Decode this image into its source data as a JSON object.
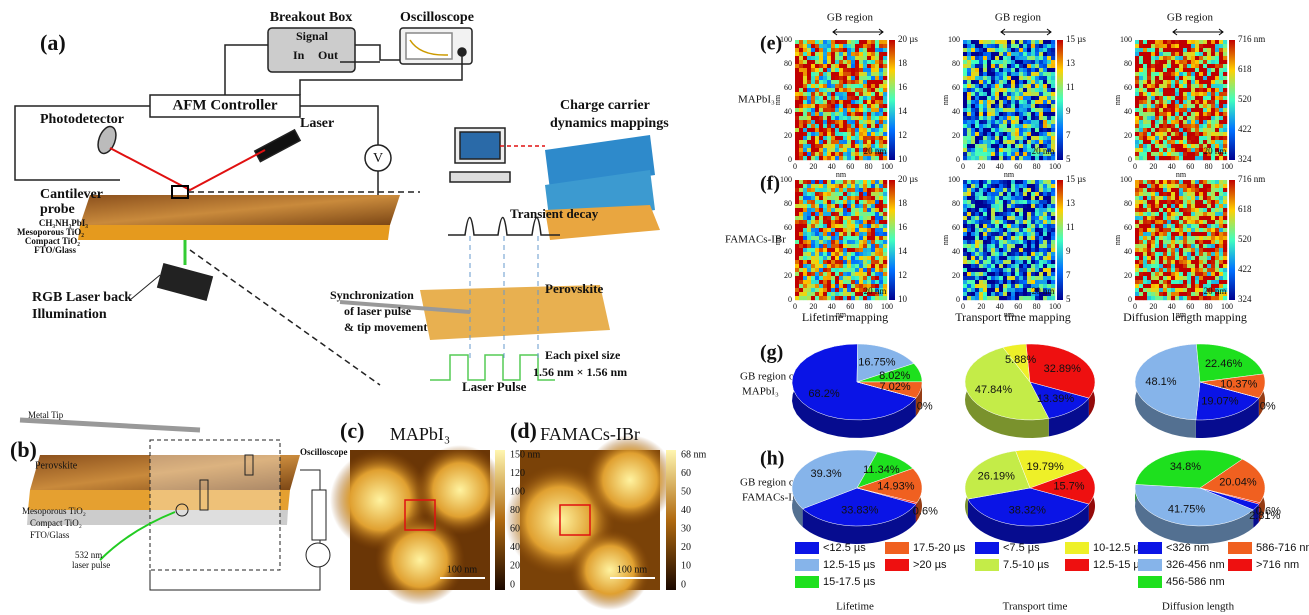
{
  "panel_a": {
    "label": "(a)",
    "breakout_box": "Breakout Box",
    "signal": "Signal",
    "in": "In",
    "out": "Out",
    "oscilloscope": "Oscilloscope",
    "afm_controller": "AFM Controller",
    "photodetector": "Photodetector",
    "laser": "Laser",
    "voltmeter": "V",
    "cantilever": [
      "Cantilever",
      "probe"
    ],
    "layers": [
      "CH₃NH₃PbI₃",
      "Mesoporous TiO₂",
      "Compact TiO₂",
      "FTO/Glass"
    ],
    "rgb": [
      "RGB Laser back",
      "Illumination"
    ],
    "mappings": [
      "Charge carrier",
      "dynamics mappings"
    ],
    "transient": "Transient decay",
    "sync": [
      "Synchronization",
      "of laser pulse",
      "& tip movement"
    ],
    "perovskite": "Perovskite",
    "pixel": [
      "Each pixel size",
      "1.56 nm × 1.56 nm"
    ],
    "laser_pulse": "Laser Pulse"
  },
  "panel_b": {
    "label": "(b)",
    "metal_tip": "Metal Tip",
    "perovskite": "Perovskite",
    "layers": [
      "Mesoporous TiO₂",
      "Compact TiO₂",
      "FTO/Glass"
    ],
    "oscilloscope": "Oscilloscope",
    "laser": [
      "532 nm",
      "laser pulse"
    ]
  },
  "panel_c": {
    "label": "(c)",
    "title": "MAPbI₃",
    "colorbar": [
      "150 nm",
      "120",
      "100",
      "80",
      "60",
      "40",
      "20",
      "0"
    ],
    "scale": "100 nm"
  },
  "panel_d": {
    "label": "(d)",
    "title": "FAMACs-IBr",
    "colorbar": [
      "68 nm",
      "60",
      "50",
      "40",
      "30",
      "20",
      "10",
      "0"
    ],
    "scale": "100 nm"
  },
  "panels_ef": {
    "labels": [
      "(e)",
      "(f)"
    ],
    "rows": [
      "MAPbI₃",
      "FAMACs-IBr"
    ],
    "gb": "GB region",
    "axis_ticks": [
      "0",
      "20",
      "40",
      "60",
      "80",
      "100"
    ],
    "axis_label": "nm",
    "scale": "20 nm",
    "columns": [
      {
        "caption": "Lifetime mapping",
        "colorbar": [
          "20 µs",
          "18",
          "16",
          "14",
          "12",
          "10"
        ]
      },
      {
        "caption": "Transport time mapping",
        "colorbar": [
          "15 µs",
          "13",
          "11",
          "9",
          "7",
          "5"
        ]
      },
      {
        "caption": "Diffusion length mapping",
        "colorbar": [
          "716 nm",
          "618",
          "520",
          "422",
          "324"
        ]
      }
    ]
  },
  "panels_gh": {
    "labels": [
      "(g)",
      "(h)"
    ],
    "rows": [
      [
        "GB region of",
        "MAPbI₃"
      ],
      [
        "GB region of",
        "FAMACs-IBr"
      ]
    ],
    "columns": [
      {
        "title": "Lifetime",
        "categories": [
          "<12.5 µs",
          "12.5-15 µs",
          "15-17.5 µs",
          "17.5-20 µs",
          ">20 µs"
        ],
        "colors": [
          "#0a14e6",
          "#86b4ea",
          "#1ee01e",
          "#f06020",
          "#ee1010"
        ],
        "pies": [
          {
            "type": "pie",
            "values": [
              68.2,
              16.75,
              8.02,
              7.02,
              0
            ],
            "value_labels": [
              "68.2%",
              "16.75%",
              "8.02%",
              "7.02%",
              "0%"
            ]
          },
          {
            "type": "pie",
            "values": [
              33.83,
              39.3,
              11.34,
              14.93,
              0.6
            ],
            "value_labels": [
              "33.83%",
              "39.3%",
              "11.34%",
              "14.93%",
              "0.6%"
            ]
          }
        ]
      },
      {
        "title": "Transport time",
        "categories": [
          "<7.5 µs",
          "7.5-10 µs",
          "10-12.5 µs",
          "12.5-15 µs"
        ],
        "colors": [
          "#0a14e6",
          "#c4ec48",
          "#eef028",
          "#ee1010"
        ],
        "pies": [
          {
            "type": "pie",
            "values": [
              13.39,
              47.84,
              5.88,
              32.89
            ],
            "value_labels": [
              "13.39%",
              "47.84%",
              "5.88%",
              "32.89%"
            ]
          },
          {
            "type": "pie",
            "values": [
              38.32,
              26.19,
              19.79,
              15.7
            ],
            "value_labels": [
              "38.32%",
              "26.19%",
              "19.79%",
              "15.7%"
            ]
          }
        ]
      },
      {
        "title": "Diffusion length",
        "categories": [
          "<326 nm",
          "326-456 nm",
          "456-586 nm",
          "586-716 nm",
          ">716 nm"
        ],
        "colors": [
          "#0a14e6",
          "#86b4ea",
          "#1ee01e",
          "#f06020",
          "#ee1010"
        ],
        "pies": [
          {
            "type": "pie",
            "values": [
              19.07,
              48.1,
              22.46,
              10.37,
              0
            ],
            "value_labels": [
              "19.07%",
              "48.1%",
              "22.46%",
              "10.37%",
              "0%"
            ]
          },
          {
            "type": "pie",
            "values": [
              2.81,
              41.75,
              34.8,
              20.04,
              0.6
            ],
            "value_labels": [
              "2.81%",
              "41.75%",
              "34.8%",
              "20.04%",
              "0.6%"
            ]
          }
        ]
      }
    ]
  }
}
